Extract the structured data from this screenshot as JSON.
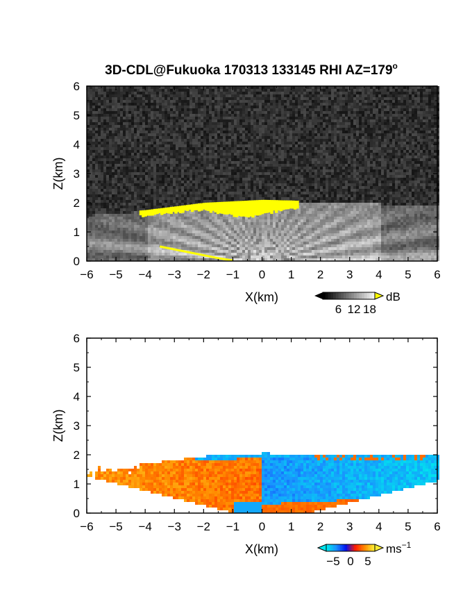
{
  "title": "3D-CDL@Fukuoka 170313 133145 RHI AZ=179",
  "title_superscript": "o",
  "chart_data": [
    {
      "type": "heatmap",
      "name": "backscatter-intensity",
      "xlabel": "X(km)",
      "ylabel": "Z(km)",
      "xlim": [
        -6,
        6
      ],
      "ylim": [
        0,
        6
      ],
      "x_ticks": [
        "-6",
        "-5",
        "-4",
        "-3",
        "-2",
        "-1",
        "0",
        "1",
        "2",
        "3",
        "4",
        "5",
        "6"
      ],
      "y_ticks": [
        "0",
        "1",
        "2",
        "3",
        "4",
        "5",
        "6"
      ],
      "colorbar": {
        "unit": "dB",
        "ticks": [
          "6",
          "12",
          "18"
        ],
        "tick_values": [
          6,
          12,
          18
        ],
        "range": [
          0,
          20
        ]
      },
      "background_color": "#2a2a2a",
      "highlight_color": "#ffff00",
      "field": {
        "description_top_km": [
          [
            -6,
            1.6
          ],
          [
            -4,
            1.75
          ],
          [
            -2,
            2.0
          ],
          [
            0,
            2.1
          ],
          [
            2,
            2.05
          ],
          [
            4,
            2.0
          ],
          [
            6,
            2.0
          ]
        ],
        "yellow_cap_x_range": [
          -4.2,
          1.2
        ],
        "yellow_cap_z": 2.0,
        "yellow_lower_arc": [
          [
            -3.5,
            0.5
          ],
          [
            -2.5,
            0.3
          ],
          [
            -1.5,
            0.1
          ],
          [
            -1.0,
            0.02
          ]
        ]
      }
    },
    {
      "type": "heatmap",
      "name": "radial-velocity",
      "xlabel": "X(km)",
      "ylabel": "Z(km)",
      "xlim": [
        -6,
        6
      ],
      "ylim": [
        0,
        6
      ],
      "x_ticks": [
        "-6",
        "-5",
        "-4",
        "-3",
        "-2",
        "-1",
        "0",
        "1",
        "2",
        "3",
        "4",
        "5",
        "6"
      ],
      "y_ticks": [
        "0",
        "1",
        "2",
        "3",
        "4",
        "5",
        "6"
      ],
      "colorbar": {
        "unit": "ms",
        "unit_superscript": "−1",
        "ticks": [
          "−5",
          "0",
          "5"
        ],
        "tick_values": [
          -5,
          0,
          5
        ],
        "range": [
          -7,
          7
        ]
      },
      "field": {
        "left_velocity_ms": 4.5,
        "right_velocity_ms": -4.5,
        "top_layer_velocity_ms": -6,
        "lower_right_layer_velocity_ms": 3,
        "cloud_top_km": 2.0
      }
    }
  ],
  "colors": {
    "vel_stops": [
      "#00e5ee",
      "#1a8fff",
      "#0011ee",
      "#ff1a00",
      "#ff8a00",
      "#ffee33"
    ],
    "gray_stops": [
      "#000000",
      "#ffffff"
    ]
  }
}
